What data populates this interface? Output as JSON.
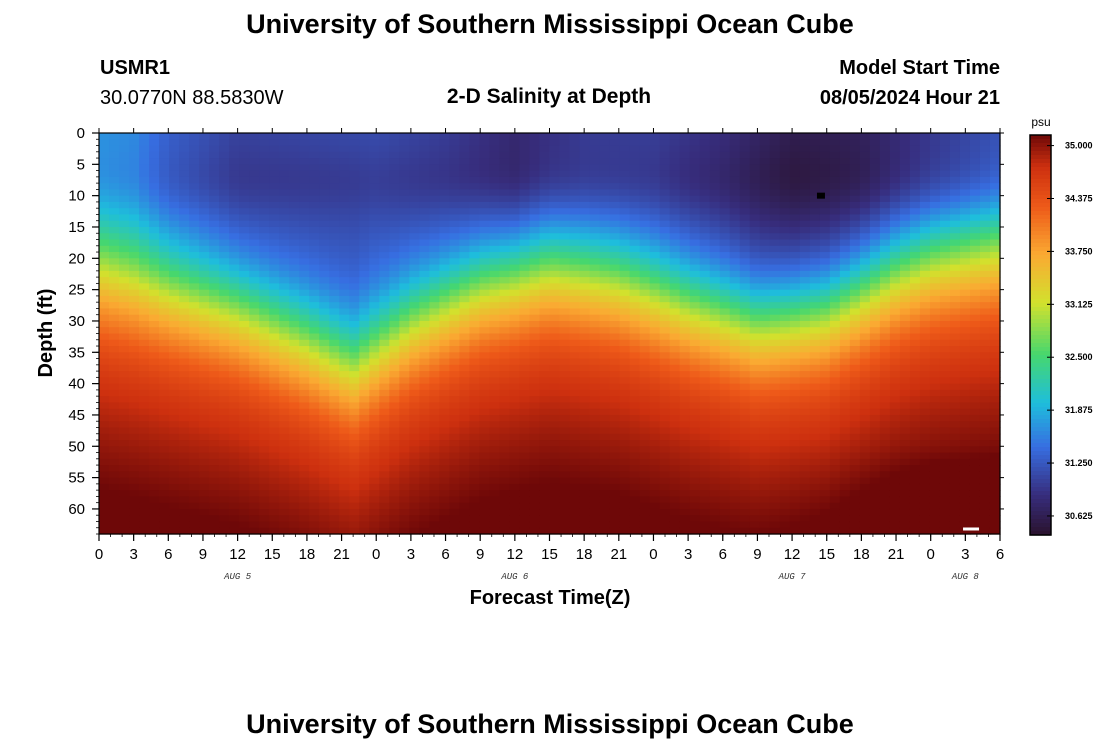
{
  "header": {
    "title": "University of Southern Mississippi Ocean Cube",
    "station_id": "USMR1",
    "coordinates": "30.0770N  88.5830W",
    "subtitle": "2-D Salinity at Depth",
    "model_label": "Model Start Time",
    "model_time": "08/05/2024 Hour 21"
  },
  "footer": {
    "title": "University of Southern Mississippi Ocean Cube"
  },
  "chart_data": {
    "type": "heatmap",
    "title": "2-D Salinity at Depth",
    "xlabel": "Forecast Time(Z)",
    "ylabel": "Depth (ft)",
    "x_ticks": [
      "0",
      "3",
      "6",
      "9",
      "12",
      "15",
      "18",
      "21",
      "0",
      "3",
      "6",
      "9",
      "12",
      "15",
      "18",
      "21",
      "0",
      "3",
      "6",
      "9",
      "12",
      "15",
      "18",
      "21",
      "0",
      "3",
      "6"
    ],
    "x_range_hours": [
      0,
      78
    ],
    "date_labels": [
      {
        "label": "AUG 5",
        "hour": 12
      },
      {
        "label": "AUG 6",
        "hour": 36
      },
      {
        "label": "AUG 7",
        "hour": 60
      },
      {
        "label": "AUG 8",
        "hour": 75
      }
    ],
    "y_ticks": [
      0,
      5,
      10,
      15,
      20,
      25,
      30,
      35,
      40,
      45,
      50,
      55,
      60
    ],
    "ylim": [
      0,
      64
    ],
    "colorbar": {
      "unit": "psu",
      "min": 30.4,
      "max": 35.125,
      "tick_values": [
        "35.000",
        "34.375",
        "33.750",
        "33.125",
        "32.500",
        "31.875",
        "31.250",
        "30.625"
      ]
    },
    "halocline_depth_ft": {
      "hours": [
        0,
        6,
        12,
        18,
        22,
        27,
        33,
        39,
        45,
        51,
        57,
        63,
        69,
        72,
        78
      ],
      "depth": [
        22,
        25,
        28,
        33,
        37,
        30,
        24,
        21,
        23,
        27,
        30,
        28,
        22,
        20,
        18
      ]
    },
    "fresh_core": {
      "hours": [
        0,
        3,
        6,
        12,
        18,
        24,
        30,
        36,
        42,
        48,
        54,
        60,
        66,
        72,
        78
      ],
      "surface_salinity": [
        31.65,
        31.6,
        31.3,
        31.05,
        31.1,
        31.15,
        31.0,
        30.75,
        30.95,
        31.0,
        30.85,
        30.6,
        30.65,
        30.9,
        31.1
      ]
    },
    "bottom_salinity_deep": 35.05
  }
}
